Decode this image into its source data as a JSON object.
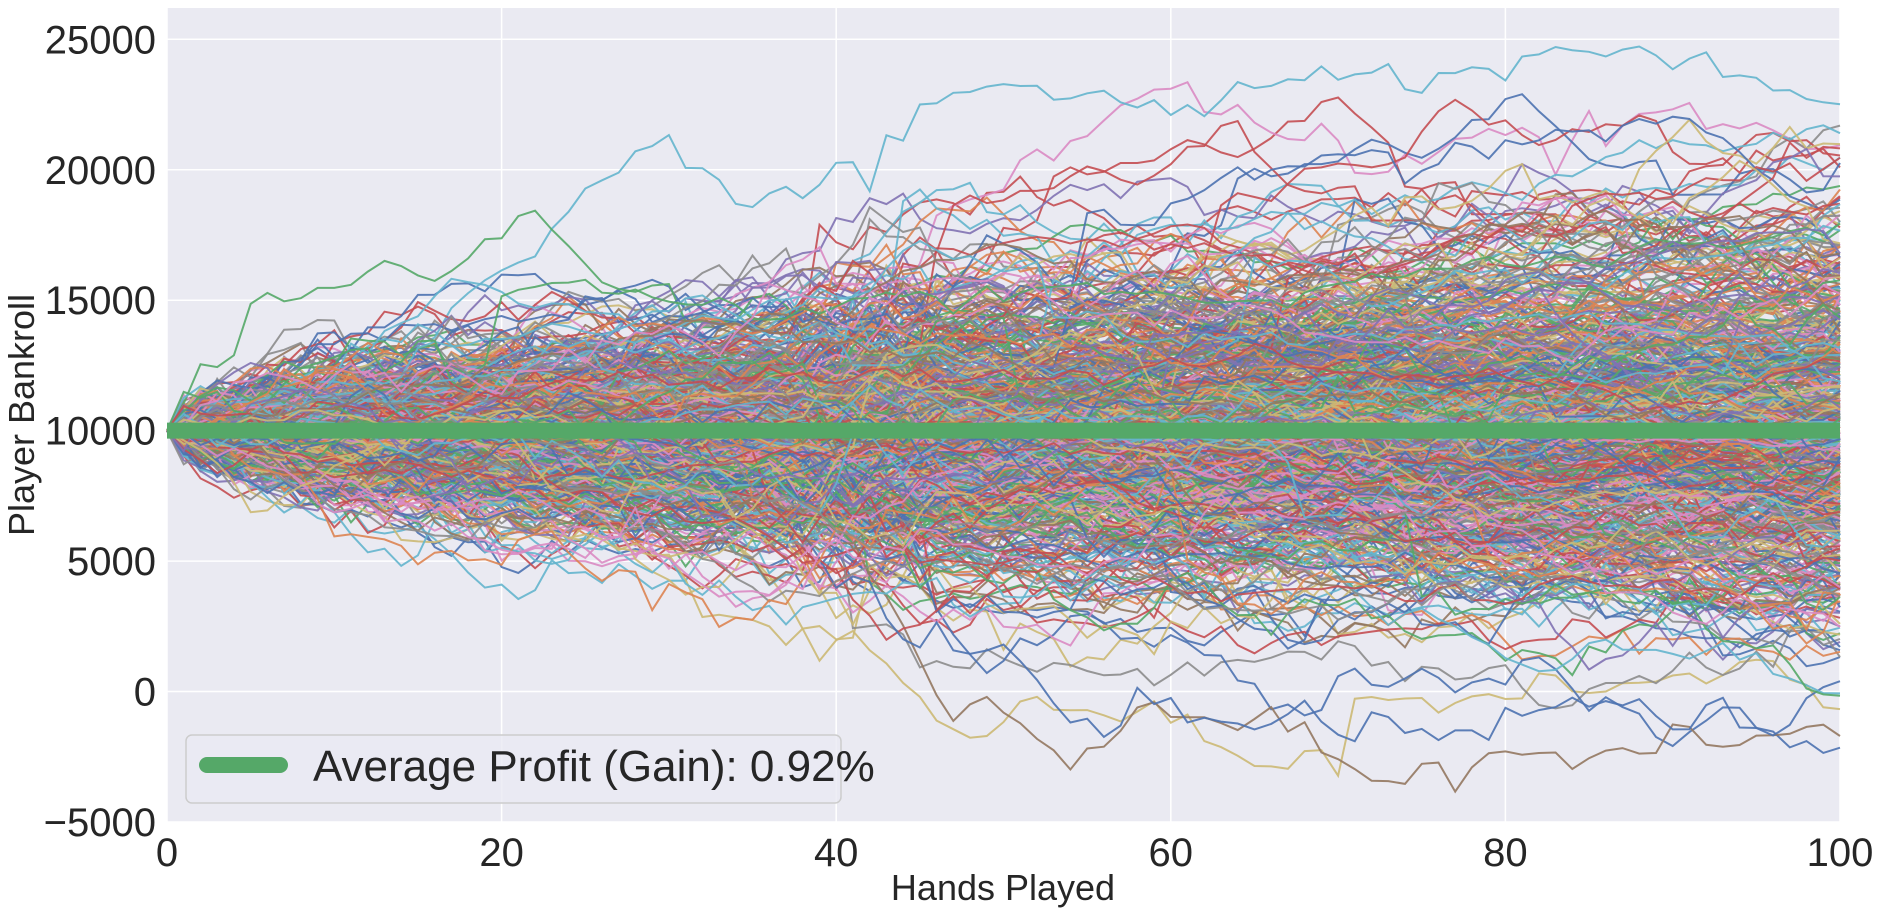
{
  "chart_data": {
    "type": "line",
    "title": "",
    "xlabel": "Hands Played",
    "ylabel": "Player Bankroll",
    "xlim": [
      0,
      100
    ],
    "ylim": [
      -5000,
      26200
    ],
    "xticks": [
      0,
      20,
      40,
      60,
      80,
      100
    ],
    "yticks": [
      -5000,
      0,
      5000,
      10000,
      15000,
      20000,
      25000
    ],
    "xtick_labels": [
      "0",
      "20",
      "40",
      "60",
      "80",
      "100"
    ],
    "ytick_labels": [
      "−5000",
      "0",
      "5000",
      "10000",
      "15000",
      "20000",
      "25000"
    ],
    "grid": true,
    "legend_position": "lower-left",
    "simulated_paths": {
      "description_visible": false,
      "count_estimate": 1000,
      "start_value": 10000,
      "hands": 100,
      "final_value_range": [
        -3600,
        23900
      ],
      "colors": [
        "#4c72b0",
        "#dd8452",
        "#55a868",
        "#c44e52",
        "#8172b3",
        "#937860",
        "#da8bc3",
        "#8c8c8c",
        "#ccb974",
        "#64b5cd"
      ]
    },
    "series": [
      {
        "name": "Average Profit (Gain): 0.92%",
        "color": "#55a868",
        "x": [
          0,
          100
        ],
        "y": [
          10000,
          10000
        ]
      }
    ]
  },
  "legend": {
    "label": "Average Profit (Gain): 0.92%"
  },
  "style": {
    "axes_facecolor": "#eaeaf2",
    "grid_color": "#ffffff"
  }
}
